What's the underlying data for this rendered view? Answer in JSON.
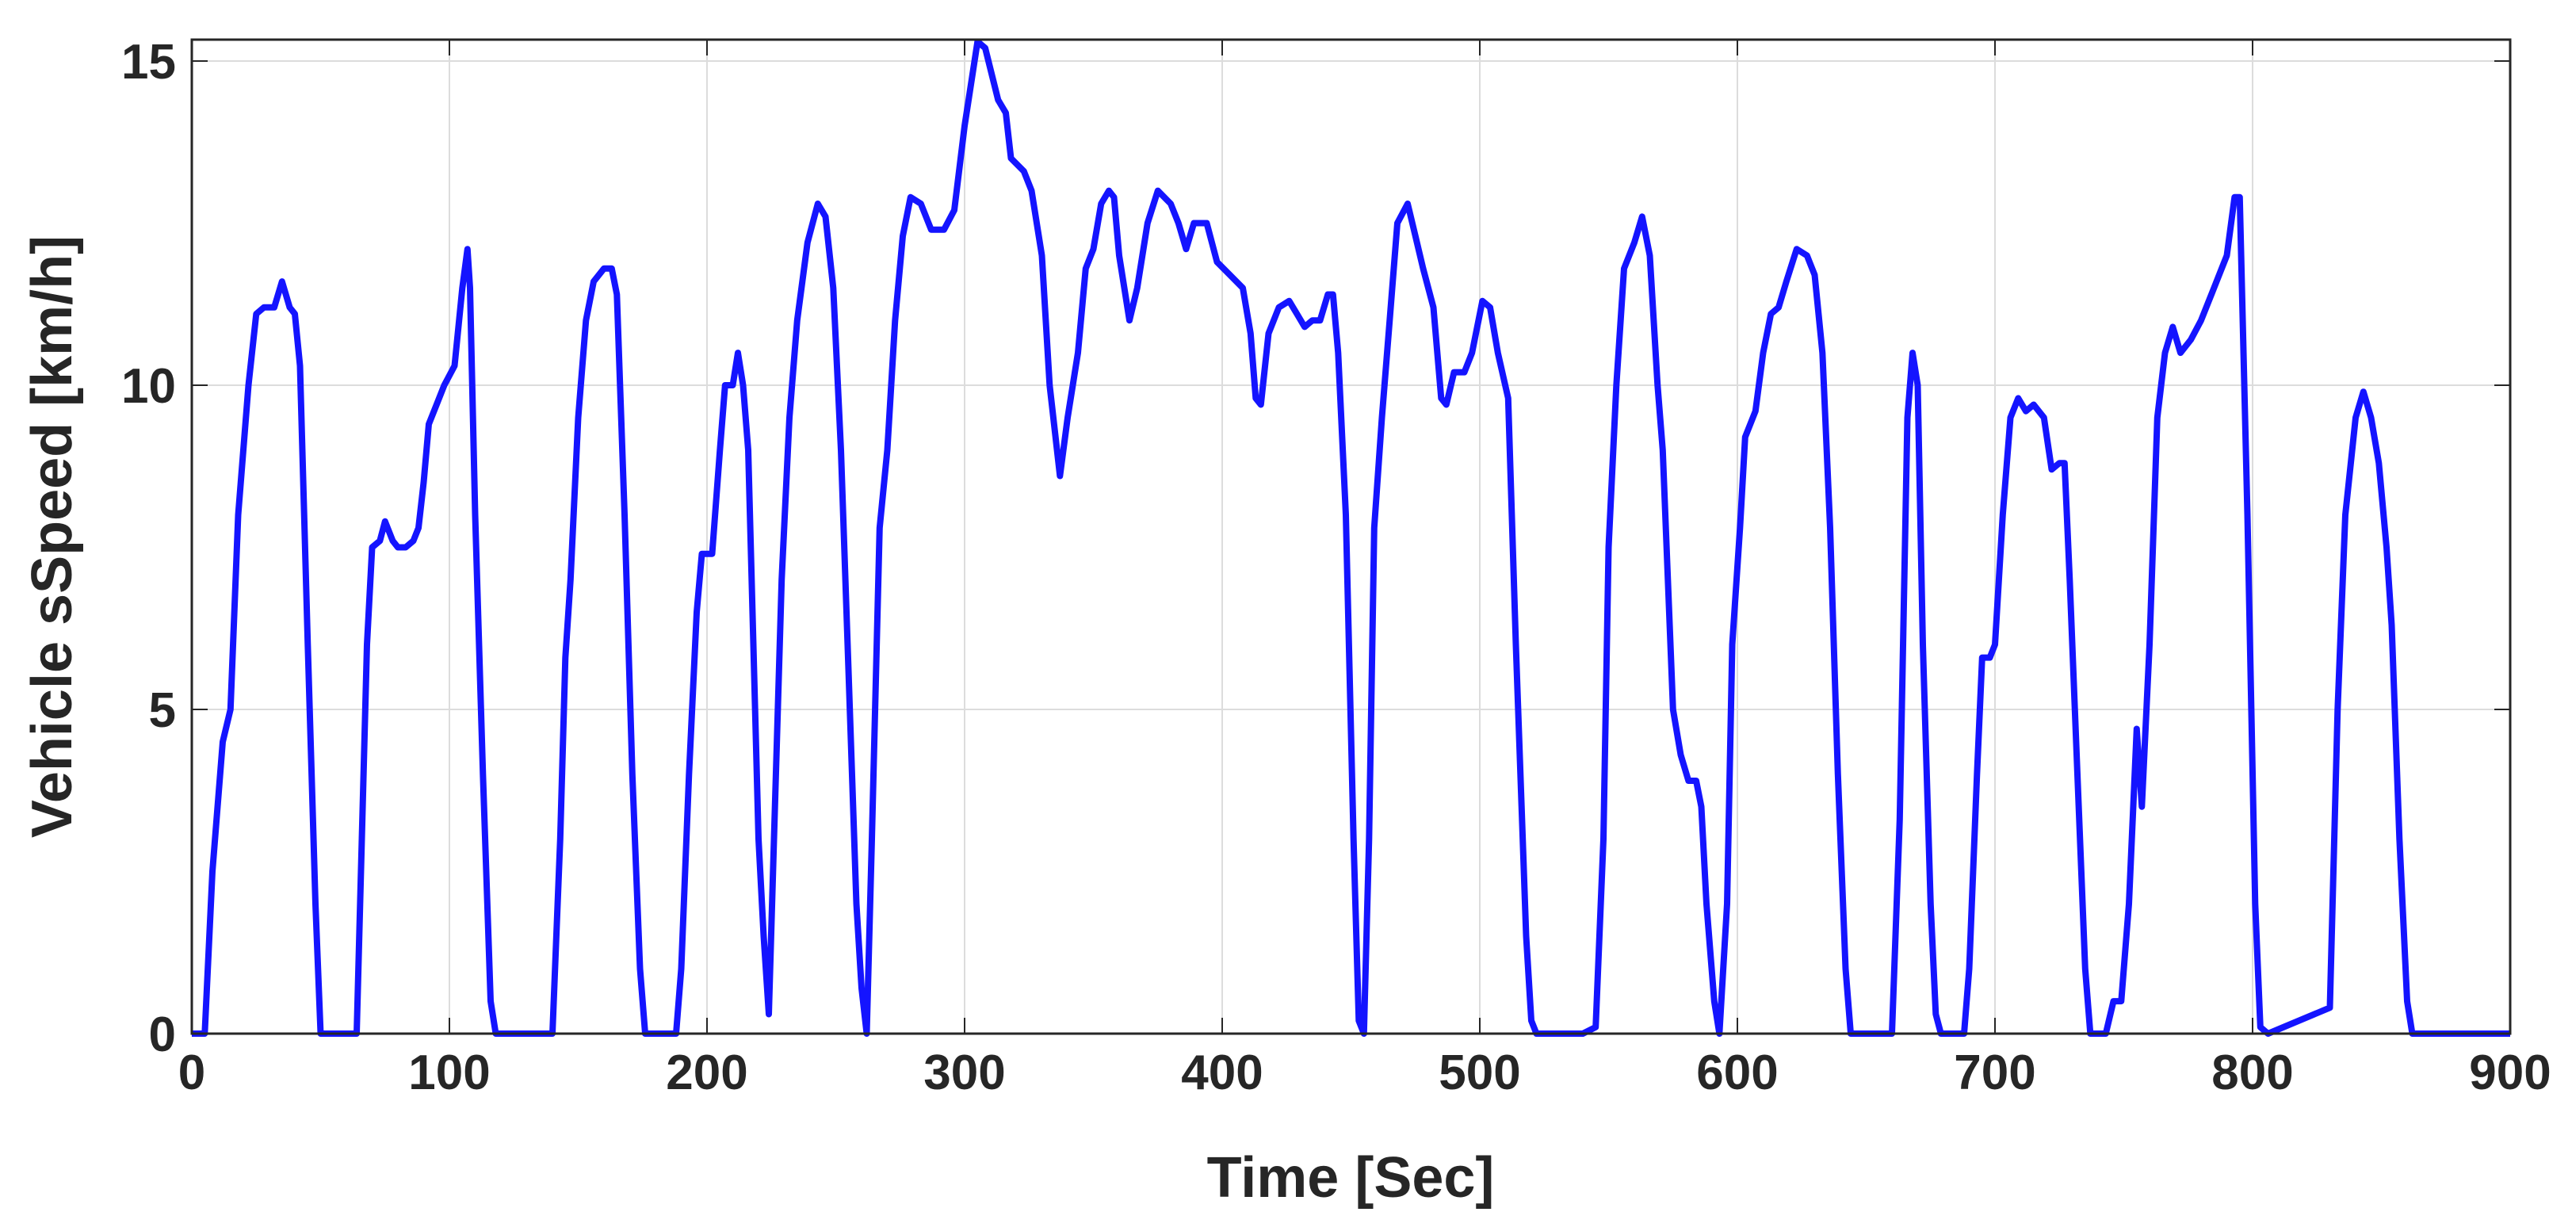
{
  "chart_data": {
    "type": "line",
    "x_label": "Time [Sec]",
    "y_label": "Vehicle sSpeed [km/h]",
    "color": "#1414ff",
    "grid": true,
    "xlim": [
      0,
      900
    ],
    "ylim": [
      0,
      15.33
    ],
    "xticks": [
      0,
      100,
      200,
      300,
      400,
      500,
      600,
      700,
      800,
      900
    ],
    "yticks": [
      0,
      5,
      10,
      15
    ],
    "x": [
      0,
      5,
      8,
      12,
      15,
      18,
      22,
      25,
      28,
      32,
      35,
      38,
      40,
      42,
      45,
      48,
      50,
      64,
      66,
      68,
      70,
      73,
      75,
      78,
      80,
      83,
      86,
      88,
      90,
      92,
      95,
      98,
      102,
      105,
      107,
      108,
      110,
      113,
      116,
      118,
      140,
      143,
      145,
      147,
      150,
      153,
      156,
      160,
      163,
      165,
      168,
      171,
      174,
      176,
      188,
      190,
      193,
      196,
      198,
      202,
      205,
      207,
      210,
      212,
      214,
      216,
      218,
      220,
      222,
      224,
      226,
      229,
      232,
      235,
      239,
      243,
      246,
      249,
      252,
      255,
      258,
      260,
      262,
      264,
      267,
      270,
      273,
      276,
      279,
      283,
      287,
      292,
      296,
      300,
      305,
      308,
      313,
      316,
      318,
      323,
      326,
      330,
      333,
      337,
      340,
      344,
      347,
      350,
      353,
      356,
      358,
      360,
      362,
      364,
      367,
      371,
      375,
      380,
      383,
      386,
      389,
      394,
      398,
      403,
      408,
      411,
      413,
      415,
      418,
      422,
      426,
      429,
      432,
      435,
      438,
      441,
      443,
      445,
      448,
      451,
      453,
      455,
      457,
      459,
      462,
      465,
      468,
      472,
      475,
      478,
      482,
      485,
      487,
      490,
      494,
      497,
      501,
      504,
      507,
      511,
      514,
      518,
      520,
      522,
      540,
      545,
      548,
      550,
      553,
      556,
      560,
      563,
      566,
      569,
      571,
      573,
      575,
      578,
      581,
      584,
      586,
      588,
      591,
      593,
      596,
      598,
      601,
      603,
      607,
      610,
      613,
      616,
      619,
      623,
      627,
      630,
      633,
      636,
      639,
      642,
      644,
      660,
      663,
      666,
      668,
      670,
      672,
      675,
      677,
      679,
      688,
      690,
      693,
      695,
      698,
      700,
      703,
      706,
      709,
      712,
      715,
      719,
      722,
      725,
      727,
      729,
      732,
      735,
      737,
      743,
      746,
      749,
      752,
      755,
      757,
      760,
      763,
      766,
      769,
      772,
      776,
      780,
      785,
      790,
      793,
      795,
      798,
      801,
      803,
      806,
      830,
      833,
      836,
      840,
      843,
      846,
      849,
      852,
      854,
      857,
      860,
      862,
      900
    ],
    "values": [
      0,
      0,
      2.5,
      4.5,
      5,
      8,
      10,
      11.1,
      11.2,
      11.2,
      11.6,
      11.2,
      11.1,
      10.3,
      6,
      2,
      0,
      0,
      3,
      6,
      7.5,
      7.6,
      7.9,
      7.6,
      7.5,
      7.5,
      7.6,
      7.8,
      8.5,
      9.4,
      9.7,
      10,
      10.3,
      11.5,
      12.1,
      11.5,
      8,
      4,
      0.5,
      0,
      0,
      3,
      5.8,
      7,
      9.5,
      11,
      11.6,
      11.8,
      11.8,
      11.4,
      8,
      4,
      1,
      0,
      0,
      1,
      4,
      6.5,
      7.4,
      7.4,
      9,
      10,
      10,
      10.5,
      10,
      9,
      6,
      3,
      1.5,
      0.3,
      3,
      7,
      9.5,
      11,
      12.2,
      12.8,
      12.6,
      11.5,
      9,
      5.5,
      2,
      0.7,
      0,
      3,
      7.8,
      9,
      11,
      12.3,
      12.9,
      12.8,
      12.4,
      12.4,
      12.7,
      14,
      15.3,
      15.2,
      14.4,
      14.2,
      13.5,
      13.3,
      13,
      12,
      10,
      8.6,
      9.5,
      10.5,
      11.8,
      12.1,
      12.8,
      13,
      12.9,
      12,
      11.5,
      11,
      11.5,
      12.5,
      13,
      12.8,
      12.5,
      12.1,
      12.5,
      12.5,
      11.9,
      11.7,
      11.5,
      10.8,
      9.8,
      9.7,
      10.8,
      11.2,
      11.3,
      11.1,
      10.9,
      11,
      11,
      11.4,
      11.4,
      10.5,
      8,
      3,
      0.2,
      0,
      3,
      7.8,
      9.5,
      11,
      12.5,
      12.8,
      12.3,
      11.8,
      11.2,
      9.8,
      9.7,
      10.2,
      10.2,
      10.5,
      11.3,
      11.2,
      10.5,
      9.8,
      6,
      1.5,
      0.2,
      0,
      0,
      0.1,
      3,
      7.5,
      10,
      11.8,
      12.2,
      12.6,
      12,
      10,
      9,
      7,
      5,
      4.3,
      3.9,
      3.9,
      3.5,
      2,
      0.5,
      0,
      2,
      6,
      7.8,
      9.2,
      9.6,
      10.5,
      11.1,
      11.2,
      11.6,
      12.1,
      12,
      11.7,
      10.5,
      7.8,
      4,
      1,
      0,
      0,
      3.3,
      9.5,
      10.5,
      10,
      6,
      2,
      0.3,
      0,
      0,
      1,
      4,
      5.8,
      5.8,
      6,
      8,
      9.5,
      9.8,
      9.6,
      9.7,
      9.5,
      8.7,
      8.8,
      8.8,
      7,
      4,
      1,
      0,
      0,
      0.5,
      0.5,
      2,
      4.7,
      3.5,
      6,
      9.5,
      10.5,
      10.9,
      10.5,
      10.7,
      11,
      11.5,
      12,
      12.9,
      12.9,
      8,
      2,
      0.1,
      0,
      0.4,
      5,
      8,
      9.5,
      9.9,
      9.5,
      8.8,
      7.5,
      6.3,
      3,
      0.5,
      0,
      0
    ]
  }
}
